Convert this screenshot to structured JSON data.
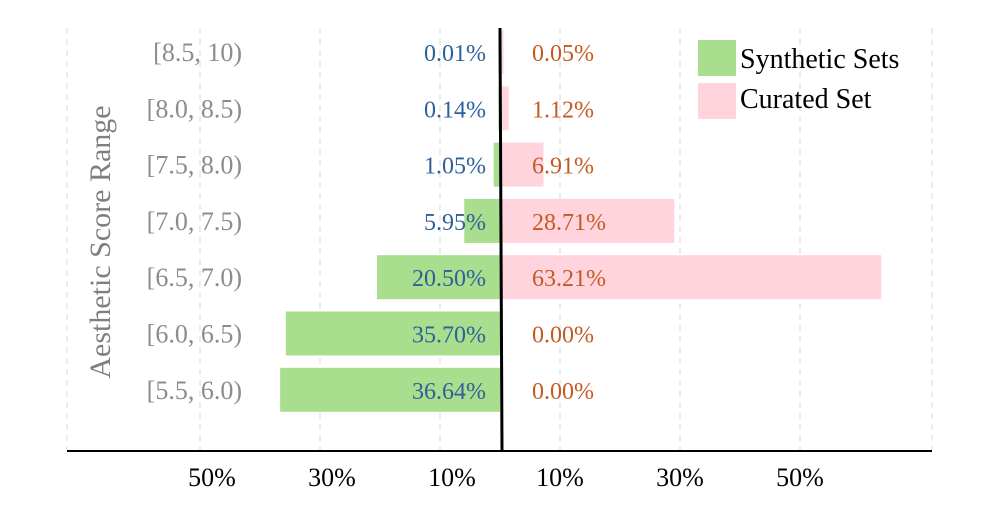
{
  "chart_data": {
    "type": "bar",
    "orientation": "horizontal",
    "layout": "diverging",
    "ylabel": "Aesthetic Score Range",
    "xlabel": "",
    "categories": [
      "[8.5, 10)",
      "[8.0, 8.5)",
      "[7.5, 8.0)",
      "[7.0, 7.5)",
      "[6.5, 7.0)",
      "[6.0, 6.5)",
      "[5.5, 6.0)"
    ],
    "series": [
      {
        "name": "Synthetic Sets",
        "side": "left",
        "color": "#a9de8e",
        "label_color": "#2e6099",
        "values": [
          0.01,
          0.14,
          1.05,
          5.95,
          20.5,
          35.7,
          36.64
        ],
        "labels": [
          "0.01%",
          "0.14%",
          "1.05%",
          "5.95%",
          "20.50%",
          "35.70%",
          "36.64%"
        ]
      },
      {
        "name": "Curated Set",
        "side": "right",
        "color": "#ffd4dc",
        "label_color": "#c45a23",
        "values": [
          0.05,
          1.12,
          6.91,
          28.71,
          63.21,
          0.0,
          0.0
        ],
        "labels": [
          "0.05%",
          "1.12%",
          "6.91%",
          "28.71%",
          "63.21%",
          "0.00%",
          "0.00%"
        ]
      }
    ],
    "x_ticks_left": [
      "50%",
      "30%",
      "10%"
    ],
    "x_ticks_right": [
      "10%",
      "30%",
      "50%"
    ],
    "x_tick_values_left": [
      50,
      30,
      10
    ],
    "x_tick_values_right": [
      10,
      30,
      50
    ],
    "grid": true,
    "legend_position": "top-right"
  }
}
